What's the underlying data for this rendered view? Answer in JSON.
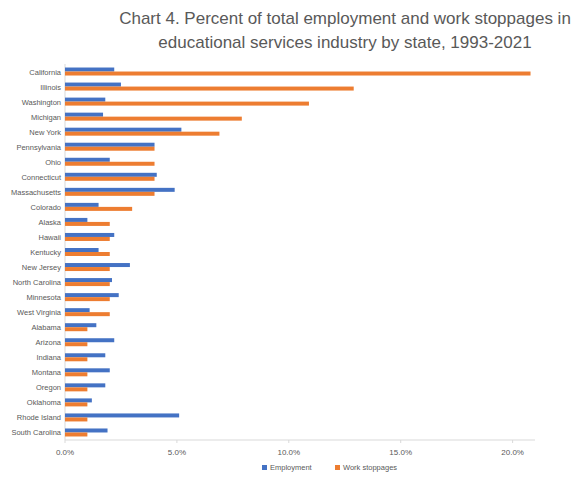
{
  "chart_data": {
    "type": "bar",
    "orientation": "horizontal",
    "title": "Chart 4. Percent of total employment and work stoppages in\neducational services industry by state, 1993-2021",
    "categories": [
      "California",
      "Illinois",
      "Washington",
      "Michigan",
      "New York",
      "Pennsylvania",
      "Ohio",
      "Connecticut",
      "Massachusetts",
      "Colorado",
      "Alaska",
      "Hawaii",
      "Kentucky",
      "New Jersey",
      "North Carolina",
      "Minnesota",
      "West Virginia",
      "Alabama",
      "Arizona",
      "Indiana",
      "Montana",
      "Oregon",
      "Oklahoma",
      "Rhode Island",
      "South Carolina"
    ],
    "series": [
      {
        "name": "Employment",
        "color": "#4472c4",
        "values": [
          2.2,
          2.5,
          1.8,
          1.7,
          5.2,
          4.0,
          2.0,
          4.1,
          4.9,
          1.5,
          1.0,
          2.2,
          1.5,
          2.9,
          2.1,
          2.4,
          1.1,
          1.4,
          2.2,
          1.8,
          2.0,
          1.8,
          1.2,
          5.1,
          1.9
        ]
      },
      {
        "name": "Work stoppages",
        "color": "#ed7d31",
        "values": [
          20.8,
          12.9,
          10.9,
          7.9,
          6.9,
          4.0,
          4.0,
          4.0,
          4.0,
          3.0,
          2.0,
          2.0,
          2.0,
          2.0,
          2.0,
          2.0,
          2.0,
          1.0,
          1.0,
          1.0,
          1.0,
          1.0,
          1.0,
          1.0,
          1.0
        ]
      }
    ],
    "xlim": [
      0,
      21
    ],
    "xticks": [
      {
        "value": 0,
        "label": "0.0%"
      },
      {
        "value": 5,
        "label": "5.0%"
      },
      {
        "value": 10,
        "label": "10.0%"
      },
      {
        "value": 15,
        "label": "15.0%"
      },
      {
        "value": 20,
        "label": "20.0%"
      }
    ],
    "grid": false,
    "legend": "bottom"
  }
}
